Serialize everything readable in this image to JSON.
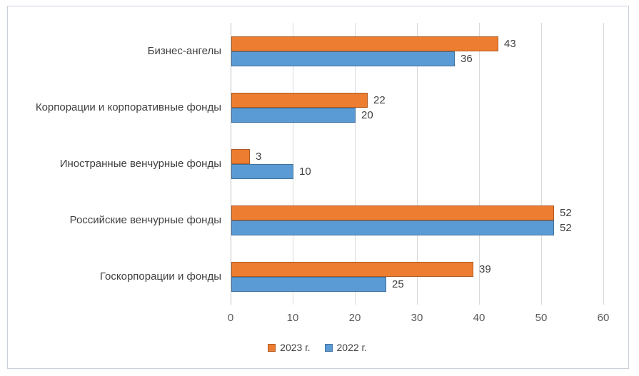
{
  "chart_data": {
    "type": "bar",
    "orientation": "horizontal",
    "title": "",
    "xlabel": "",
    "ylabel": "",
    "categories": [
      "Бизнес-ангелы",
      "Корпорации и корпоративные фонды",
      "Иностранные венчурные фонды",
      "Российские венчурные фонды",
      "Госкорпорации и фонды"
    ],
    "series": [
      {
        "name": "2023 г.",
        "color": "#ED7D31",
        "border_color": "#AE5A21",
        "values": [
          43,
          22,
          3,
          52,
          39
        ]
      },
      {
        "name": "2022 г.",
        "color": "#5B9BD5",
        "border_color": "#41719C",
        "values": [
          36,
          20,
          10,
          52,
          25
        ]
      }
    ],
    "data_labels": true,
    "xlim": [
      0,
      60
    ],
    "xticks": [
      0,
      10,
      20,
      30,
      40,
      50,
      60
    ],
    "grid": "vertical",
    "gridline_color": "#D9D9D9",
    "axis_line_color": "#BFBFBF",
    "legend_position": "bottom",
    "text_color": "#404040",
    "tick_label_color": "#595959",
    "frame_border_color": "#C9D0DA"
  }
}
